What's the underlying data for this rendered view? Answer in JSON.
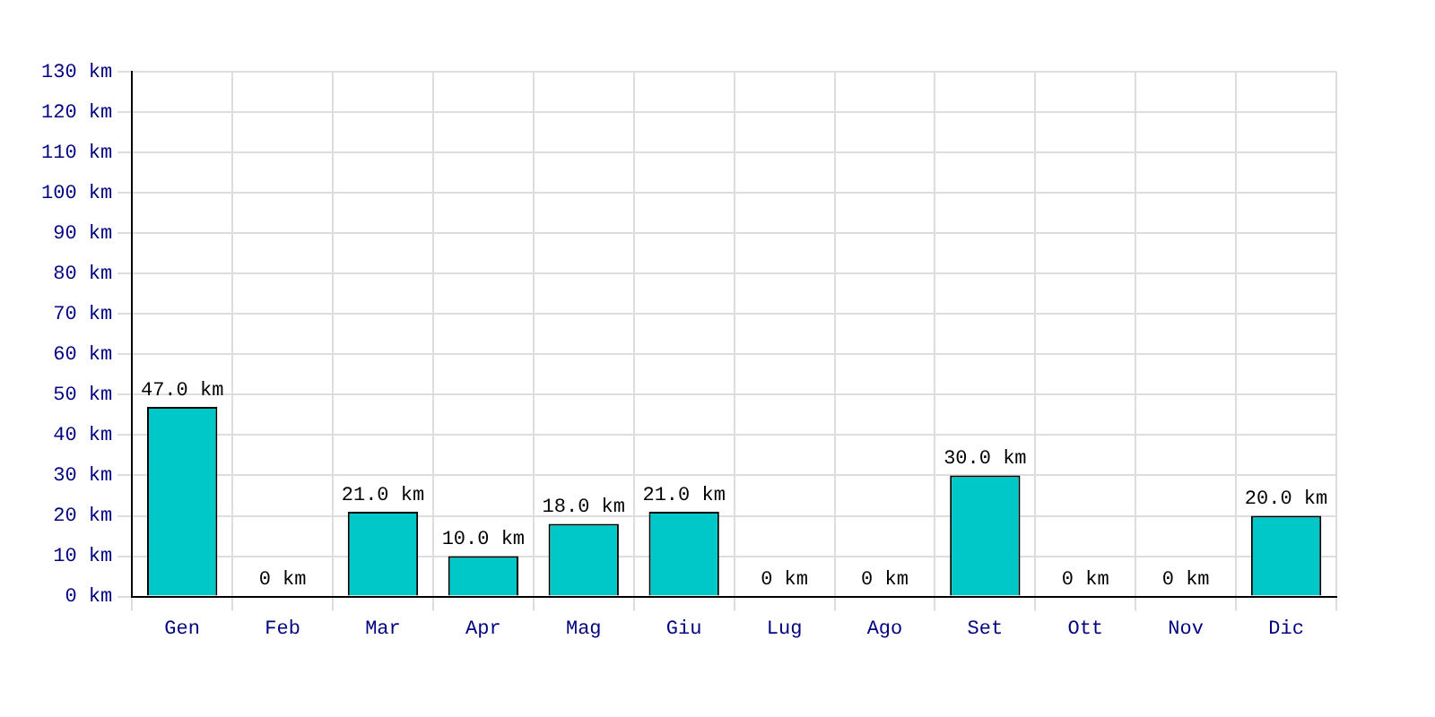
{
  "chart_data": {
    "type": "bar",
    "categories": [
      "Gen",
      "Feb",
      "Mar",
      "Apr",
      "Mag",
      "Giu",
      "Lug",
      "Ago",
      "Set",
      "Ott",
      "Nov",
      "Dic"
    ],
    "values": [
      47,
      0,
      21,
      10,
      18,
      21,
      0,
      0,
      30,
      0,
      0,
      20
    ],
    "value_labels": [
      "47.0 km",
      "0 km",
      "21.0 km",
      "10.0 km",
      "18.0 km",
      "21.0 km",
      "0 km",
      "0 km",
      "30.0 km",
      "0 km",
      "0 km",
      "20.0 km"
    ],
    "color": "#00c8c8",
    "ylim": [
      0,
      130
    ],
    "yticks": [
      {
        "value": 0,
        "label": "0 km"
      },
      {
        "value": 10,
        "label": "10 km"
      },
      {
        "value": 20,
        "label": "20 km"
      },
      {
        "value": 30,
        "label": "30 km"
      },
      {
        "value": 40,
        "label": "40 km"
      },
      {
        "value": 50,
        "label": "50 km"
      },
      {
        "value": 60,
        "label": "60 km"
      },
      {
        "value": 70,
        "label": "70 km"
      },
      {
        "value": 80,
        "label": "80 km"
      },
      {
        "value": 90,
        "label": "90 km"
      },
      {
        "value": 100,
        "label": "100 km"
      },
      {
        "value": 110,
        "label": "110 km"
      },
      {
        "value": 120,
        "label": "120 km"
      },
      {
        "value": 130,
        "label": "130 km"
      }
    ],
    "grid": true,
    "legend": false
  }
}
